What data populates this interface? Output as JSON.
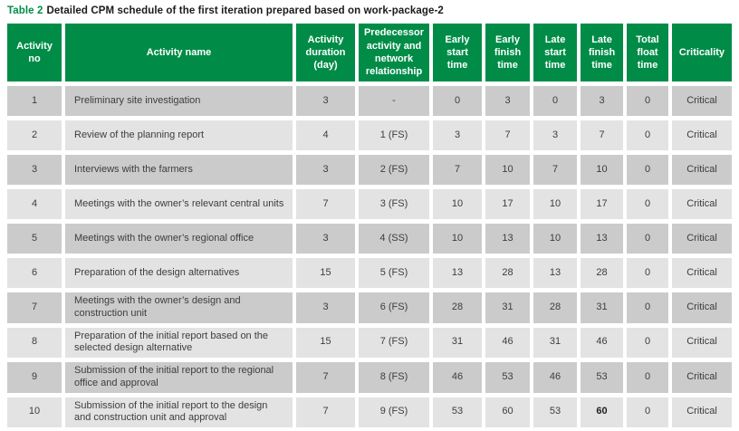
{
  "title": {
    "label": "Table 2",
    "text": "Detailed CPM schedule of the first iteration prepared based on work-package-2"
  },
  "colors": {
    "header_green": "#008c47",
    "row_dark": "#cbcbcb",
    "row_light": "#e3e3e3",
    "header_text": "#ffffff",
    "cell_text": "#3d3d3d"
  },
  "table": {
    "columns": [
      "Activity no",
      "Activity name",
      "Activity duration (day)",
      "Predecessor activity and network relationship",
      "Early start time",
      "Early finish time",
      "Late start time",
      "Late finish time",
      "Total float time",
      "Criticality"
    ],
    "rows": [
      [
        "1",
        "Preliminary site investigation",
        "3",
        "-",
        "0",
        "3",
        "0",
        "3",
        "0",
        "Critical"
      ],
      [
        "2",
        "Review of the planning report",
        "4",
        "1 (FS)",
        "3",
        "7",
        "3",
        "7",
        "0",
        "Critical"
      ],
      [
        "3",
        "Interviews with the farmers",
        "3",
        "2 (FS)",
        "7",
        "10",
        "7",
        "10",
        "0",
        "Critical"
      ],
      [
        "4",
        "Meetings with the owner’s relevant central units",
        "7",
        "3 (FS)",
        "10",
        "17",
        "10",
        "17",
        "0",
        "Critical"
      ],
      [
        "5",
        "Meetings with the owner’s regional office",
        "3",
        "4 (SS)",
        "10",
        "13",
        "10",
        "13",
        "0",
        "Critical"
      ],
      [
        "6",
        "Preparation of the design alternatives",
        "15",
        "5 (FS)",
        "13",
        "28",
        "13",
        "28",
        "0",
        "Critical"
      ],
      [
        "7",
        "Meetings with the owner’s design and construction unit",
        "3",
        "6 (FS)",
        "28",
        "31",
        "28",
        "31",
        "0",
        "Critical"
      ],
      [
        "8",
        "Preparation of the initial report based on the selected design alternative",
        "15",
        "7 (FS)",
        "31",
        "46",
        "31",
        "46",
        "0",
        "Critical"
      ],
      [
        "9",
        "Submission of the initial report to the regional office and approval",
        "7",
        "8 (FS)",
        "46",
        "53",
        "46",
        "53",
        "0",
        "Critical"
      ],
      [
        "10",
        "Submission of the initial report to the design and construction unit and approval",
        "7",
        "9 (FS)",
        "53",
        "60",
        "53",
        "60",
        "0",
        "Critical"
      ]
    ],
    "bold_cells": [
      [
        9,
        7
      ]
    ]
  }
}
